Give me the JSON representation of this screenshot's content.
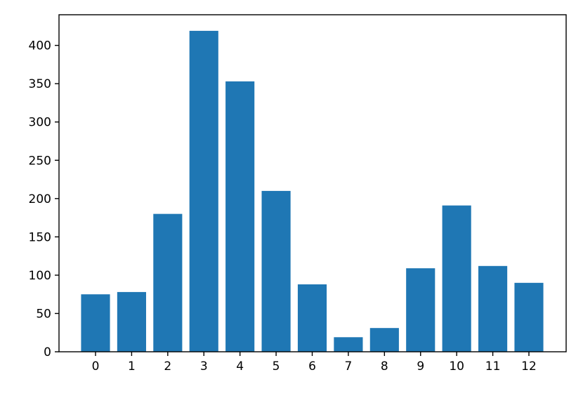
{
  "chart_data": {
    "type": "bar",
    "title": "",
    "xlabel": "",
    "ylabel": "",
    "categories": [
      "0",
      "1",
      "2",
      "3",
      "4",
      "5",
      "6",
      "7",
      "8",
      "9",
      "10",
      "11",
      "12"
    ],
    "values": [
      75,
      78,
      180,
      419,
      353,
      210,
      88,
      19,
      31,
      109,
      191,
      112,
      90
    ],
    "ylim": [
      0,
      440
    ],
    "yticks": [
      0,
      50,
      100,
      150,
      200,
      250,
      300,
      350,
      400
    ],
    "grid": false,
    "bar_color": "#1f77b4"
  }
}
